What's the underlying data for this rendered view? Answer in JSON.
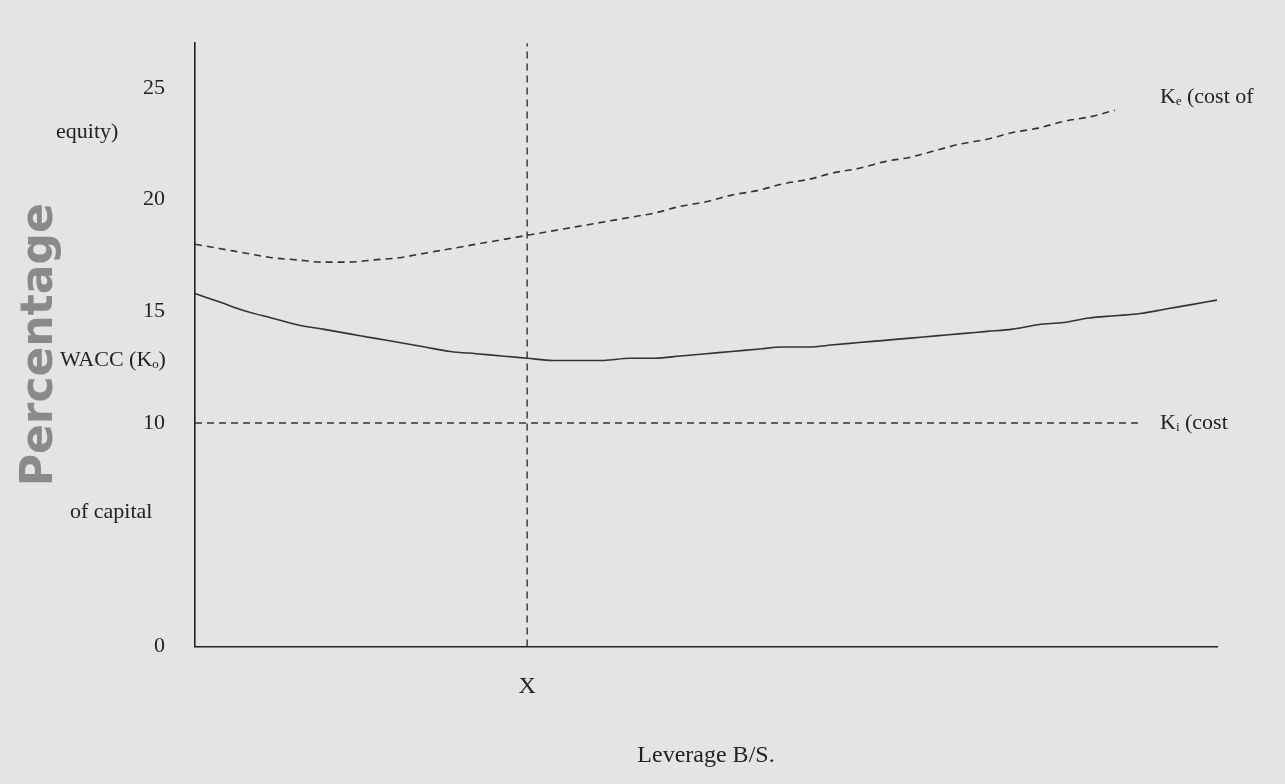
{
  "chart_data": {
    "type": "line",
    "xlabel": "Leverage B/S.",
    "ylabel": "Percentage",
    "categories": [
      null,
      null,
      null,
      null,
      null,
      null,
      null,
      null,
      null,
      null,
      null,
      null,
      null,
      "X",
      null,
      null,
      null,
      null,
      null,
      null,
      null,
      null,
      null,
      null,
      null,
      null,
      null,
      null,
      null,
      null,
      null,
      null,
      null,
      null,
      null,
      null,
      null,
      null,
      null,
      null,
      null
    ],
    "series": [
      {
        "color": "#333333",
        "line_style": "dashed",
        "values": [
          18.0,
          17.8,
          17.6,
          17.4,
          17.3,
          17.2,
          17.2,
          17.3,
          17.4,
          17.6,
          17.8,
          18.0,
          18.2,
          18.4,
          18.6,
          18.8,
          19.0,
          19.2,
          19.4,
          19.7,
          19.9,
          20.2,
          20.4,
          20.7,
          20.9,
          21.2,
          21.4,
          21.7,
          21.9,
          22.2,
          22.5,
          22.7,
          23.0,
          23.2,
          23.5,
          23.7,
          24.0,
          null,
          null,
          null,
          null
        ]
      },
      {
        "color": "#333333",
        "line_style": "solid",
        "values": [
          15.8,
          15.4,
          15.0,
          14.7,
          14.4,
          14.2,
          14.0,
          13.8,
          13.6,
          13.4,
          13.2,
          13.1,
          13.0,
          12.9,
          12.8,
          12.8,
          12.8,
          12.9,
          12.9,
          13.0,
          13.1,
          13.2,
          13.3,
          13.4,
          13.4,
          13.5,
          13.6,
          13.7,
          13.8,
          13.9,
          14.0,
          14.1,
          14.2,
          14.4,
          14.5,
          14.7,
          14.8,
          14.9,
          15.1,
          15.3,
          15.5
        ]
      },
      {
        "color": "#333333",
        "line_style": "dashed",
        "values": [
          10,
          10,
          10,
          10,
          10,
          10,
          10,
          10,
          10,
          10,
          10,
          10,
          10,
          10,
          10,
          10,
          10,
          10,
          10,
          10,
          10,
          10,
          10,
          10,
          10,
          10,
          10,
          10,
          10,
          10,
          10,
          10,
          10,
          10,
          10,
          10,
          10,
          10,
          null,
          null,
          null
        ]
      }
    ],
    "ylim": [
      0,
      27
    ],
    "yticks": [
      0,
      10,
      15,
      20,
      25
    ],
    "ref_lines": [
      {
        "axis": "x",
        "value": "X",
        "color": "#333333",
        "line_style": "dashed"
      }
    ],
    "annotations": [
      "Kₑ (cost of",
      "equity)",
      "WACC (Kₒ)",
      "Kᵢ (cost",
      "of capital"
    ],
    "grid": false,
    "legend": false,
    "marker": "none"
  }
}
